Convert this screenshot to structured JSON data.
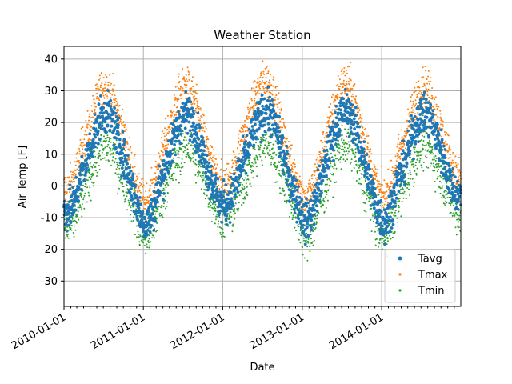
{
  "chart_data": {
    "type": "scatter",
    "title": "Weather Station",
    "xlabel": "Date",
    "ylabel": "Air Temp [F]",
    "xlim": [
      "2010-01-01",
      "2014-12-31"
    ],
    "ylim": [
      -38,
      44
    ],
    "x_ticks": [
      "2010-01-01",
      "2011-01-01",
      "2012-01-01",
      "2013-01-01",
      "2014-01-01"
    ],
    "y_ticks": [
      -30,
      -20,
      -10,
      0,
      10,
      20,
      30,
      40
    ],
    "grid": true,
    "legend_position": "lower-right",
    "series": [
      {
        "name": "Tavg",
        "color": "#1f77b4",
        "marker": "dot",
        "monthly_mean": [
          {
            "x": "2010-01-15",
            "y": -8
          },
          {
            "x": "2010-02-15",
            "y": -6
          },
          {
            "x": "2010-03-15",
            "y": 2
          },
          {
            "x": "2010-04-15",
            "y": 8
          },
          {
            "x": "2010-05-15",
            "y": 15
          },
          {
            "x": "2010-06-15",
            "y": 21
          },
          {
            "x": "2010-07-15",
            "y": 23
          },
          {
            "x": "2010-08-15",
            "y": 20
          },
          {
            "x": "2010-09-15",
            "y": 13
          },
          {
            "x": "2010-10-15",
            "y": 6
          },
          {
            "x": "2010-11-15",
            "y": -1
          },
          {
            "x": "2010-12-15",
            "y": -9
          },
          {
            "x": "2011-01-15",
            "y": -12
          },
          {
            "x": "2011-02-15",
            "y": -8
          },
          {
            "x": "2011-03-15",
            "y": 0
          },
          {
            "x": "2011-04-15",
            "y": 7
          },
          {
            "x": "2011-05-15",
            "y": 13
          },
          {
            "x": "2011-06-15",
            "y": 20
          },
          {
            "x": "2011-07-15",
            "y": 23
          },
          {
            "x": "2011-08-15",
            "y": 21
          },
          {
            "x": "2011-09-15",
            "y": 14
          },
          {
            "x": "2011-10-15",
            "y": 7
          },
          {
            "x": "2011-11-15",
            "y": 1
          },
          {
            "x": "2011-12-15",
            "y": -5
          },
          {
            "x": "2012-01-15",
            "y": -6
          },
          {
            "x": "2012-02-15",
            "y": -3
          },
          {
            "x": "2012-03-15",
            "y": 4
          },
          {
            "x": "2012-04-15",
            "y": 9
          },
          {
            "x": "2012-05-15",
            "y": 16
          },
          {
            "x": "2012-06-15",
            "y": 21
          },
          {
            "x": "2012-07-15",
            "y": 24
          },
          {
            "x": "2012-08-15",
            "y": 22
          },
          {
            "x": "2012-09-15",
            "y": 15
          },
          {
            "x": "2012-10-15",
            "y": 7
          },
          {
            "x": "2012-11-15",
            "y": 0
          },
          {
            "x": "2012-12-15",
            "y": -6
          },
          {
            "x": "2013-01-15",
            "y": -12
          },
          {
            "x": "2013-02-15",
            "y": -8
          },
          {
            "x": "2013-03-15",
            "y": -1
          },
          {
            "x": "2013-04-15",
            "y": 6
          },
          {
            "x": "2013-05-15",
            "y": 14
          },
          {
            "x": "2013-06-15",
            "y": 21
          },
          {
            "x": "2013-07-15",
            "y": 24
          },
          {
            "x": "2013-08-15",
            "y": 22
          },
          {
            "x": "2013-09-15",
            "y": 15
          },
          {
            "x": "2013-10-15",
            "y": 7
          },
          {
            "x": "2013-11-15",
            "y": -1
          },
          {
            "x": "2013-12-15",
            "y": -8
          },
          {
            "x": "2014-01-15",
            "y": -12
          },
          {
            "x": "2014-02-15",
            "y": -6
          },
          {
            "x": "2014-03-15",
            "y": 2
          },
          {
            "x": "2014-04-15",
            "y": 7
          },
          {
            "x": "2014-05-15",
            "y": 14
          },
          {
            "x": "2014-06-15",
            "y": 21
          },
          {
            "x": "2014-07-15",
            "y": 23
          },
          {
            "x": "2014-08-15",
            "y": 21
          },
          {
            "x": "2014-09-15",
            "y": 15
          },
          {
            "x": "2014-10-15",
            "y": 8
          },
          {
            "x": "2014-11-15",
            "y": 1
          },
          {
            "x": "2014-12-15",
            "y": -3
          }
        ]
      },
      {
        "name": "Tmax",
        "color": "#ff7f0e",
        "marker": "small-dot",
        "monthly_mean": [
          {
            "x": "2010-01-15",
            "y": -1
          },
          {
            "x": "2010-02-15",
            "y": 2
          },
          {
            "x": "2010-03-15",
            "y": 10
          },
          {
            "x": "2010-04-15",
            "y": 16
          },
          {
            "x": "2010-05-15",
            "y": 23
          },
          {
            "x": "2010-06-15",
            "y": 30
          },
          {
            "x": "2010-07-15",
            "y": 32
          },
          {
            "x": "2010-08-15",
            "y": 28
          },
          {
            "x": "2010-09-15",
            "y": 21
          },
          {
            "x": "2010-10-15",
            "y": 13
          },
          {
            "x": "2010-11-15",
            "y": 5
          },
          {
            "x": "2010-12-15",
            "y": -3
          },
          {
            "x": "2011-01-15",
            "y": -5
          },
          {
            "x": "2011-02-15",
            "y": -1
          },
          {
            "x": "2011-03-15",
            "y": 7
          },
          {
            "x": "2011-04-15",
            "y": 15
          },
          {
            "x": "2011-05-15",
            "y": 22
          },
          {
            "x": "2011-06-15",
            "y": 29
          },
          {
            "x": "2011-07-15",
            "y": 32
          },
          {
            "x": "2011-08-15",
            "y": 29
          },
          {
            "x": "2011-09-15",
            "y": 22
          },
          {
            "x": "2011-10-15",
            "y": 14
          },
          {
            "x": "2011-11-15",
            "y": 7
          },
          {
            "x": "2011-12-15",
            "y": 1
          },
          {
            "x": "2012-01-15",
            "y": 1
          },
          {
            "x": "2012-02-15",
            "y": 4
          },
          {
            "x": "2012-03-15",
            "y": 12
          },
          {
            "x": "2012-04-15",
            "y": 18
          },
          {
            "x": "2012-05-15",
            "y": 25
          },
          {
            "x": "2012-06-15",
            "y": 31
          },
          {
            "x": "2012-07-15",
            "y": 34
          },
          {
            "x": "2012-08-15",
            "y": 31
          },
          {
            "x": "2012-09-15",
            "y": 23
          },
          {
            "x": "2012-10-15",
            "y": 14
          },
          {
            "x": "2012-11-15",
            "y": 6
          },
          {
            "x": "2012-12-15",
            "y": 1
          },
          {
            "x": "2013-01-15",
            "y": -5
          },
          {
            "x": "2013-02-15",
            "y": -1
          },
          {
            "x": "2013-03-15",
            "y": 6
          },
          {
            "x": "2013-04-15",
            "y": 14
          },
          {
            "x": "2013-05-15",
            "y": 22
          },
          {
            "x": "2013-06-15",
            "y": 30
          },
          {
            "x": "2013-07-15",
            "y": 33
          },
          {
            "x": "2013-08-15",
            "y": 31
          },
          {
            "x": "2013-09-15",
            "y": 23
          },
          {
            "x": "2013-10-15",
            "y": 15
          },
          {
            "x": "2013-11-15",
            "y": 6
          },
          {
            "x": "2013-12-15",
            "y": -1
          },
          {
            "x": "2014-01-15",
            "y": -4
          },
          {
            "x": "2014-02-15",
            "y": 1
          },
          {
            "x": "2014-03-15",
            "y": 9
          },
          {
            "x": "2014-04-15",
            "y": 15
          },
          {
            "x": "2014-05-15",
            "y": 22
          },
          {
            "x": "2014-06-15",
            "y": 29
          },
          {
            "x": "2014-07-15",
            "y": 32
          },
          {
            "x": "2014-08-15",
            "y": 29
          },
          {
            "x": "2014-09-15",
            "y": 22
          },
          {
            "x": "2014-10-15",
            "y": 15
          },
          {
            "x": "2014-11-15",
            "y": 8
          },
          {
            "x": "2014-12-15",
            "y": 3
          }
        ]
      },
      {
        "name": "Tmin",
        "color": "#2ca02c",
        "marker": "small-dot",
        "monthly_mean": [
          {
            "x": "2010-01-15",
            "y": -13
          },
          {
            "x": "2010-02-15",
            "y": -11
          },
          {
            "x": "2010-03-15",
            "y": -5
          },
          {
            "x": "2010-04-15",
            "y": 1
          },
          {
            "x": "2010-05-15",
            "y": 6
          },
          {
            "x": "2010-06-15",
            "y": 11
          },
          {
            "x": "2010-07-15",
            "y": 13
          },
          {
            "x": "2010-08-15",
            "y": 11
          },
          {
            "x": "2010-09-15",
            "y": 5
          },
          {
            "x": "2010-10-15",
            "y": 0
          },
          {
            "x": "2010-11-15",
            "y": -5
          },
          {
            "x": "2010-12-15",
            "y": -14
          },
          {
            "x": "2011-01-15",
            "y": -16
          },
          {
            "x": "2011-02-15",
            "y": -13
          },
          {
            "x": "2011-03-15",
            "y": -6
          },
          {
            "x": "2011-04-15",
            "y": 0
          },
          {
            "x": "2011-05-15",
            "y": 5
          },
          {
            "x": "2011-06-15",
            "y": 10
          },
          {
            "x": "2011-07-15",
            "y": 13
          },
          {
            "x": "2011-08-15",
            "y": 11
          },
          {
            "x": "2011-09-15",
            "y": 6
          },
          {
            "x": "2011-10-15",
            "y": 1
          },
          {
            "x": "2011-11-15",
            "y": -4
          },
          {
            "x": "2011-12-15",
            "y": -9
          },
          {
            "x": "2012-01-15",
            "y": -10
          },
          {
            "x": "2012-02-15",
            "y": -8
          },
          {
            "x": "2012-03-15",
            "y": -2
          },
          {
            "x": "2012-04-15",
            "y": 2
          },
          {
            "x": "2012-05-15",
            "y": 7
          },
          {
            "x": "2012-06-15",
            "y": 11
          },
          {
            "x": "2012-07-15",
            "y": 14
          },
          {
            "x": "2012-08-15",
            "y": 12
          },
          {
            "x": "2012-09-15",
            "y": 6
          },
          {
            "x": "2012-10-15",
            "y": 1
          },
          {
            "x": "2012-11-15",
            "y": -5
          },
          {
            "x": "2012-12-15",
            "y": -11
          },
          {
            "x": "2013-01-15",
            "y": -17
          },
          {
            "x": "2013-02-15",
            "y": -14
          },
          {
            "x": "2013-03-15",
            "y": -7
          },
          {
            "x": "2013-04-15",
            "y": -1
          },
          {
            "x": "2013-05-15",
            "y": 6
          },
          {
            "x": "2013-06-15",
            "y": 11
          },
          {
            "x": "2013-07-15",
            "y": 14
          },
          {
            "x": "2013-08-15",
            "y": 12
          },
          {
            "x": "2013-09-15",
            "y": 6
          },
          {
            "x": "2013-10-15",
            "y": 0
          },
          {
            "x": "2013-11-15",
            "y": -6
          },
          {
            "x": "2013-12-15",
            "y": -13
          },
          {
            "x": "2014-01-15",
            "y": -16
          },
          {
            "x": "2014-02-15",
            "y": -12
          },
          {
            "x": "2014-03-15",
            "y": -5
          },
          {
            "x": "2014-04-15",
            "y": 0
          },
          {
            "x": "2014-05-15",
            "y": 6
          },
          {
            "x": "2014-06-15",
            "y": 11
          },
          {
            "x": "2014-07-15",
            "y": 13
          },
          {
            "x": "2014-08-15",
            "y": 11
          },
          {
            "x": "2014-09-15",
            "y": 6
          },
          {
            "x": "2014-10-15",
            "y": 1
          },
          {
            "x": "2014-11-15",
            "y": -4
          },
          {
            "x": "2014-12-15",
            "y": -9
          }
        ]
      }
    ]
  }
}
